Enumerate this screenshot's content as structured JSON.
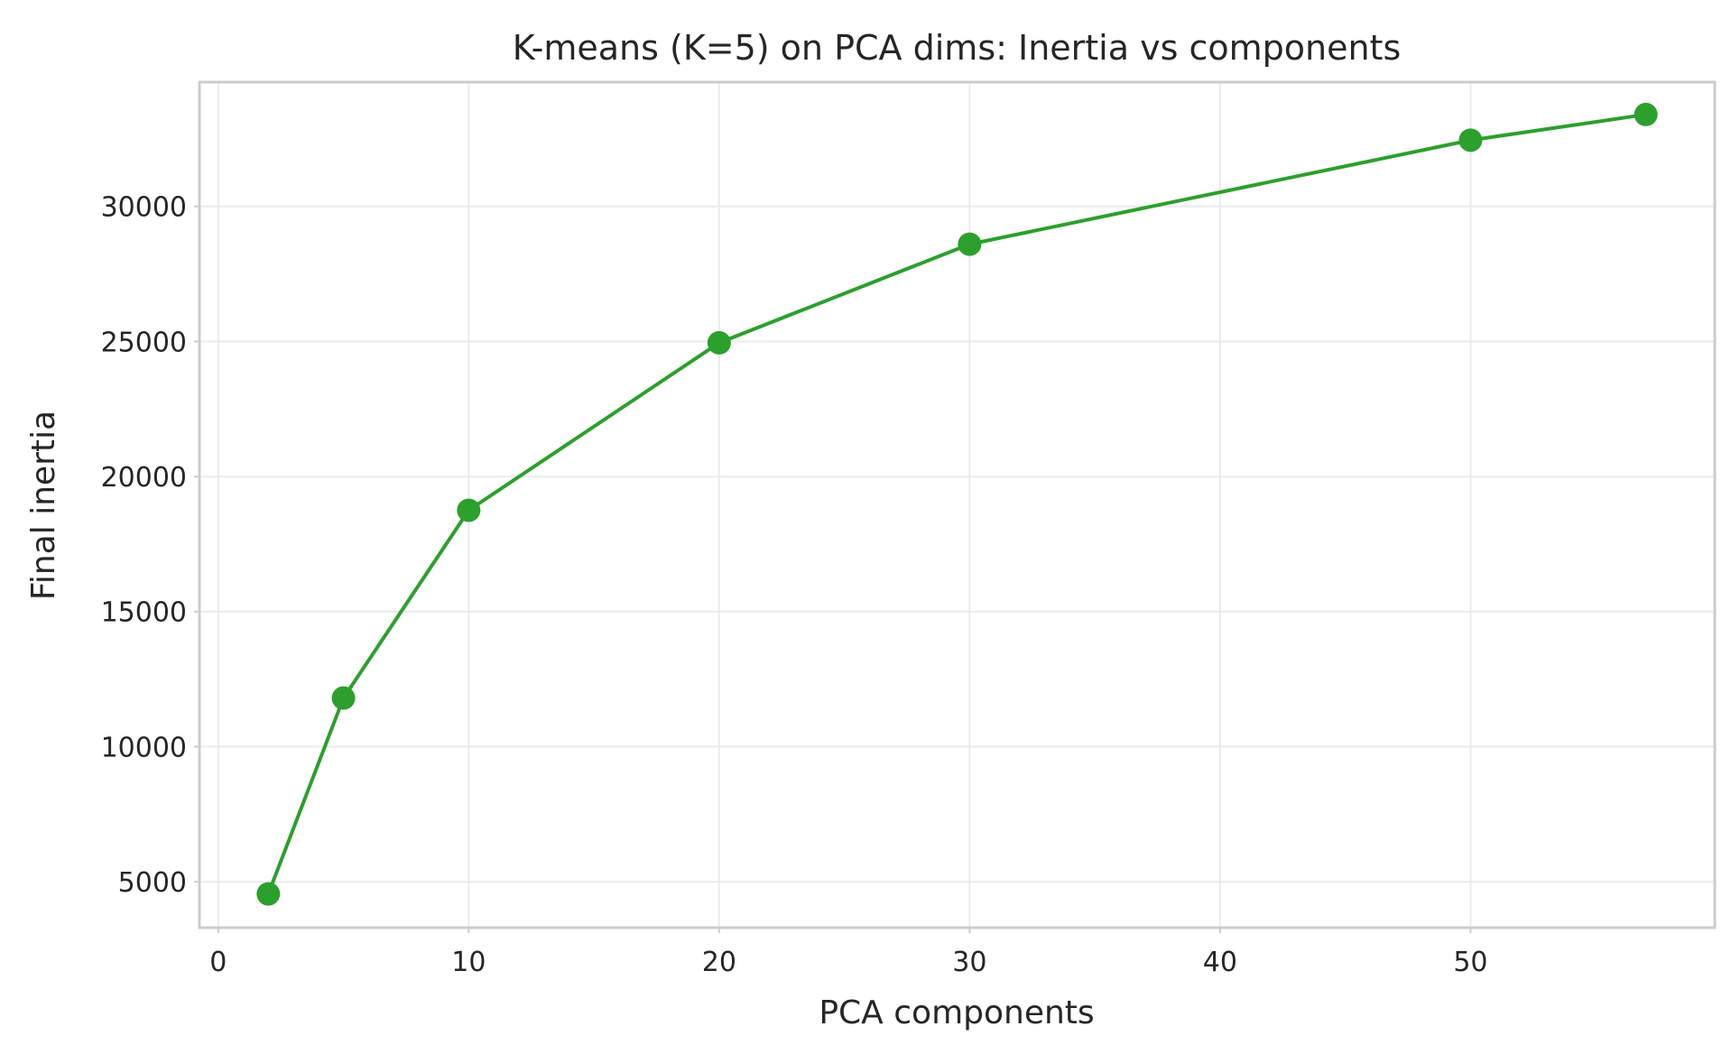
{
  "chart_data": {
    "type": "line",
    "title": "K-means (K=5) on PCA dims: Inertia vs components",
    "xlabel": "PCA components",
    "ylabel": "Final inertia",
    "xlim": [
      -0.75,
      59.75
    ],
    "ylim": [
      3300,
      34600
    ],
    "xticks": [
      0,
      10,
      20,
      30,
      40,
      50
    ],
    "yticks": [
      5000,
      10000,
      15000,
      20000,
      25000,
      30000
    ],
    "grid": true,
    "color": "#2ca02c",
    "series": [
      {
        "x": [
          2,
          5,
          10,
          20,
          30,
          50,
          57
        ],
        "y": [
          4550,
          11800,
          18750,
          24950,
          28600,
          32450,
          33400
        ]
      }
    ]
  }
}
